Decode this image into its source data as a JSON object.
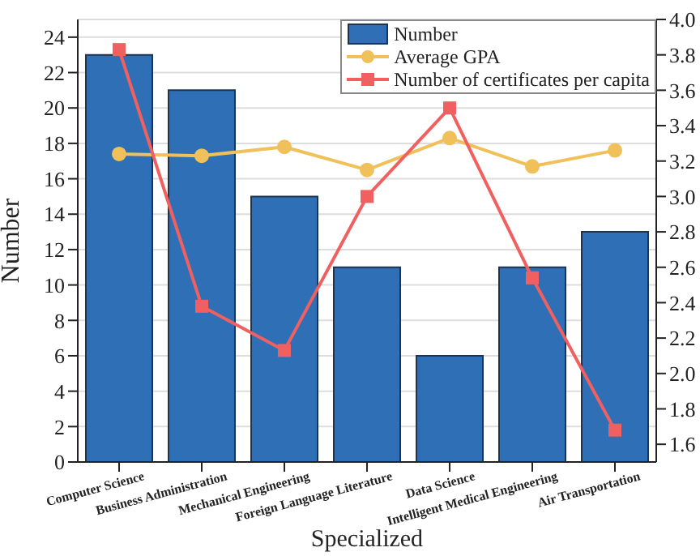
{
  "chart_data": {
    "type": "bar",
    "xlabel": "Specialized",
    "ylabel": "Number",
    "categories": [
      "Computer Science",
      "Business Administration",
      "Mechanical Engineering",
      "Foreign Language Literature",
      "Data Science",
      "Intelligent Medical Engineering",
      "Air Transportation"
    ],
    "series": [
      {
        "name": "Number",
        "color": "#2e6fb5",
        "values": [
          23,
          21,
          15,
          11,
          6,
          11,
          13
        ]
      },
      {
        "name": "Average GPA",
        "type": "line",
        "axis": "y2",
        "color": "#f0c05a",
        "marker": "circle",
        "values": [
          3.24,
          3.23,
          3.28,
          3.15,
          3.33,
          3.17,
          3.26
        ]
      },
      {
        "name": "Number of certificates per capita",
        "type": "line",
        "axis": "y2",
        "color": "#f06060",
        "marker": "square",
        "values": [
          3.83,
          2.38,
          2.13,
          3.0,
          3.5,
          2.54,
          1.68
        ]
      }
    ],
    "ylim": [
      0,
      25
    ],
    "yticks": [
      0,
      2,
      4,
      6,
      8,
      10,
      12,
      14,
      16,
      18,
      20,
      22,
      24
    ],
    "y2lim": [
      1.5,
      4.0
    ],
    "y2ticks": [
      {
        "value": 1.6,
        "label": "1.6"
      },
      {
        "value": 1.8,
        "label": "1.8"
      },
      {
        "value": 2.0,
        "label": "2.0"
      },
      {
        "value": 2.2,
        "label": "2.2"
      },
      {
        "value": 2.4,
        "label": "2.4"
      },
      {
        "value": 2.6,
        "label": "2.6"
      },
      {
        "value": 2.8,
        "label": "2.8"
      },
      {
        "value": 3.0,
        "label": "3.0"
      },
      {
        "value": 3.2,
        "label": "3.2"
      },
      {
        "value": 3.4,
        "label": "3.4"
      },
      {
        "value": 3.6,
        "label": "3.6"
      },
      {
        "value": 3.8,
        "label": "3.8"
      },
      {
        "value": 4.0,
        "label": "4.0"
      }
    ],
    "grid": "y",
    "legend": "top right"
  }
}
